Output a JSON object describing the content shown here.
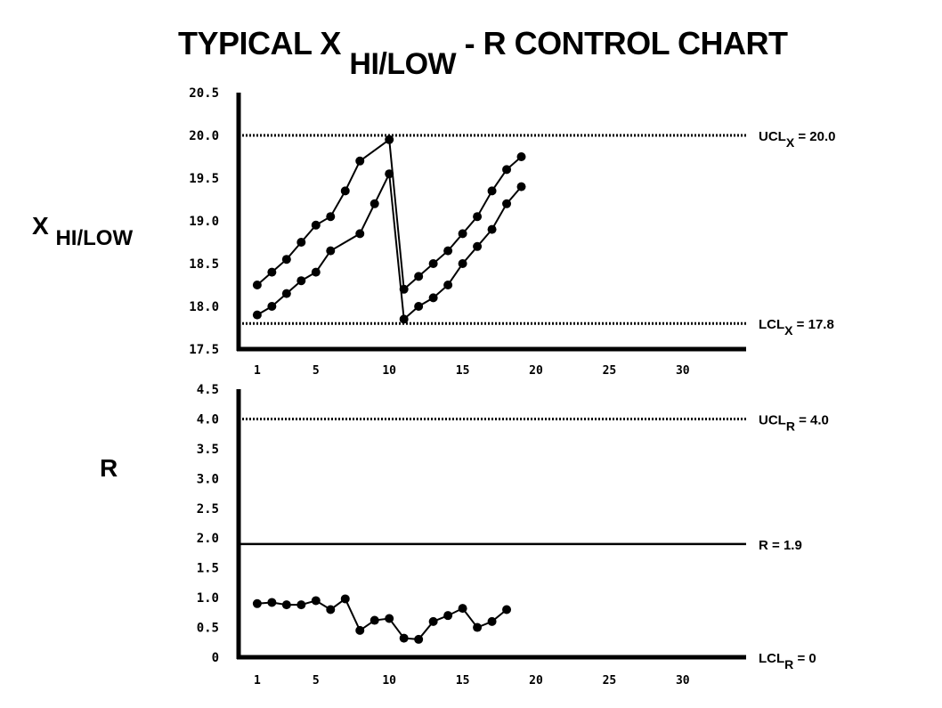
{
  "title": {
    "main": "TYPICAL X",
    "sub": "HI/LOW",
    "suffix": "- R CONTROL CHART"
  },
  "chart_data": [
    {
      "type": "line",
      "ylabel": {
        "main": "X",
        "sub": "HI/LOW"
      },
      "ylim": [
        17.5,
        20.5
      ],
      "xlim": [
        0,
        35
      ],
      "y_ticks": [
        "20.5",
        "20.0",
        "19.5",
        "19.0",
        "18.5",
        "18.0",
        "17.5"
      ],
      "y_tick_values": [
        20.5,
        20.0,
        19.5,
        19.0,
        18.5,
        18.0,
        17.5
      ],
      "x_ticks": [
        "1",
        "5",
        "10",
        "15",
        "20",
        "25",
        "30"
      ],
      "x_tick_values": [
        1,
        5,
        10,
        15,
        20,
        25,
        30
      ],
      "series": [
        {
          "values": [
            {
              "x": 1,
              "y": 18.25
            },
            {
              "x": 2,
              "y": 18.4
            },
            {
              "x": 3,
              "y": 18.55
            },
            {
              "x": 4,
              "y": 18.75
            },
            {
              "x": 5,
              "y": 18.95
            },
            {
              "x": 6,
              "y": 19.05
            },
            {
              "x": 7,
              "y": 19.35
            },
            {
              "x": 8,
              "y": 19.7
            },
            {
              "x": 10,
              "y": 19.95
            },
            {
              "x": 11,
              "y": 18.2
            },
            {
              "x": 12,
              "y": 18.35
            },
            {
              "x": 13,
              "y": 18.5
            },
            {
              "x": 14,
              "y": 18.65
            },
            {
              "x": 15,
              "y": 18.85
            },
            {
              "x": 16,
              "y": 19.05
            },
            {
              "x": 17,
              "y": 19.35
            },
            {
              "x": 18,
              "y": 19.6
            },
            {
              "x": 19,
              "y": 19.75
            }
          ]
        },
        {
          "values": [
            {
              "x": 1,
              "y": 17.9
            },
            {
              "x": 2,
              "y": 18.0
            },
            {
              "x": 3,
              "y": 18.15
            },
            {
              "x": 4,
              "y": 18.3
            },
            {
              "x": 5,
              "y": 18.4
            },
            {
              "x": 6,
              "y": 18.65
            },
            {
              "x": 8,
              "y": 18.85
            },
            {
              "x": 9,
              "y": 19.2
            },
            {
              "x": 10,
              "y": 19.55
            },
            {
              "x": 11,
              "y": 17.85
            },
            {
              "x": 12,
              "y": 18.0
            },
            {
              "x": 13,
              "y": 18.1
            },
            {
              "x": 14,
              "y": 18.25
            },
            {
              "x": 15,
              "y": 18.5
            },
            {
              "x": 16,
              "y": 18.7
            },
            {
              "x": 17,
              "y": 18.9
            },
            {
              "x": 18,
              "y": 19.2
            },
            {
              "x": 19,
              "y": 19.4
            }
          ]
        }
      ],
      "limits": [
        {
          "value": 20.0,
          "style": "dotted",
          "label": "UCL",
          "sub": "X",
          "text": "= 20.0"
        },
        {
          "value": 17.8,
          "style": "dotted",
          "label": "LCL",
          "sub": "X",
          "text": "= 17.8"
        }
      ]
    },
    {
      "type": "line",
      "ylabel": {
        "main": "R",
        "sub": ""
      },
      "ylim": [
        0,
        4.5
      ],
      "xlim": [
        0,
        35
      ],
      "y_ticks": [
        "4.5",
        "4.0",
        "3.5",
        "3.0",
        "2.5",
        "2.0",
        "1.5",
        "1.0",
        "0.5",
        "0"
      ],
      "y_tick_values": [
        4.5,
        4.0,
        3.5,
        3.0,
        2.5,
        2.0,
        1.5,
        1.0,
        0.5,
        0
      ],
      "x_ticks": [
        "1",
        "5",
        "10",
        "15",
        "20",
        "25",
        "30"
      ],
      "x_tick_values": [
        1,
        5,
        10,
        15,
        20,
        25,
        30
      ],
      "series": [
        {
          "values": [
            {
              "x": 1,
              "y": 0.9
            },
            {
              "x": 2,
              "y": 0.92
            },
            {
              "x": 3,
              "y": 0.88
            },
            {
              "x": 4,
              "y": 0.88
            },
            {
              "x": 5,
              "y": 0.95
            },
            {
              "x": 6,
              "y": 0.8
            },
            {
              "x": 7,
              "y": 0.98
            },
            {
              "x": 8,
              "y": 0.45
            },
            {
              "x": 9,
              "y": 0.62
            },
            {
              "x": 10,
              "y": 0.65
            },
            {
              "x": 11,
              "y": 0.32
            },
            {
              "x": 12,
              "y": 0.3
            },
            {
              "x": 13,
              "y": 0.6
            },
            {
              "x": 14,
              "y": 0.7
            },
            {
              "x": 15,
              "y": 0.82
            },
            {
              "x": 16,
              "y": 0.5
            },
            {
              "x": 17,
              "y": 0.6
            },
            {
              "x": 18,
              "y": 0.8
            }
          ]
        }
      ],
      "limits": [
        {
          "value": 4.0,
          "style": "dotted",
          "label": "UCL",
          "sub": "R",
          "text": "= 4.0"
        },
        {
          "value": 1.9,
          "style": "solid",
          "label": "R",
          "sub": "",
          "text": "= 1.9"
        },
        {
          "value": 0,
          "style": "axis",
          "label": "LCL",
          "sub": "R",
          "text": "= 0"
        }
      ]
    }
  ]
}
